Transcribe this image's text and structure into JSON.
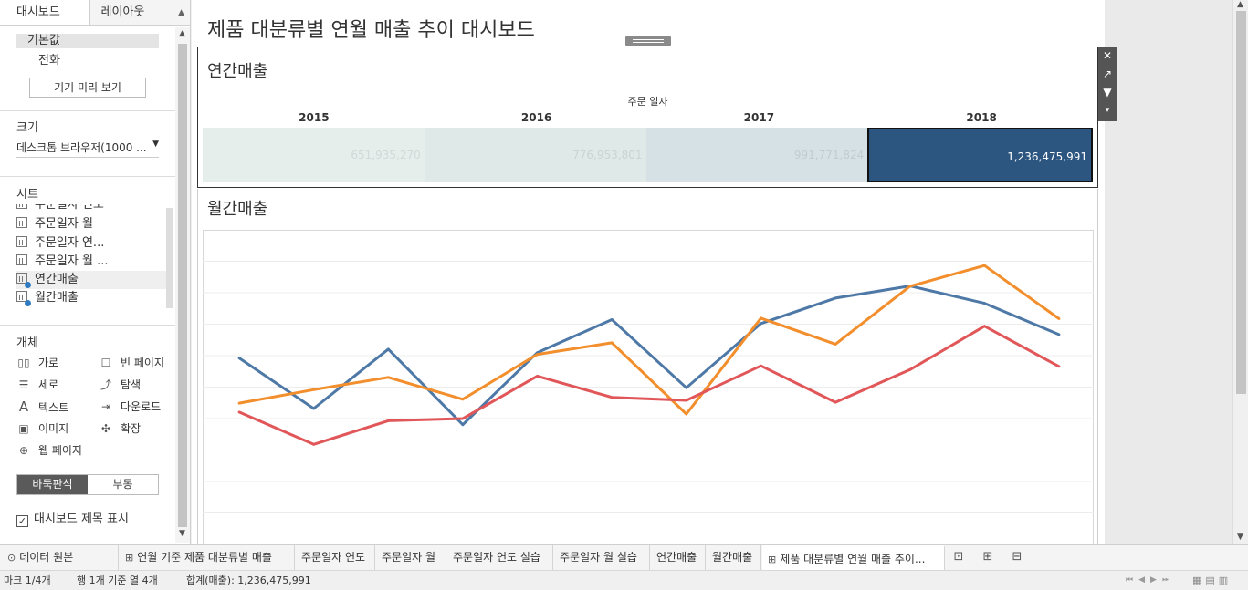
{
  "left_panel": {
    "tabs": [
      "대시보드",
      "레이아웃"
    ],
    "devices": [
      "기본값",
      "전화"
    ],
    "preview_button": "기기 미리 보기",
    "size_label": "크기",
    "size_value": "데스크톱 브라우저(1000 ...",
    "sheets_label": "시트",
    "sheets": [
      {
        "label": "주문일자 연도",
        "highlight": false,
        "used": false
      },
      {
        "label": "주문일자 월",
        "highlight": false,
        "used": false
      },
      {
        "label": "주문일자 연...",
        "highlight": false,
        "used": false
      },
      {
        "label": "주문일자 월 ...",
        "highlight": false,
        "used": false
      },
      {
        "label": "연간매출",
        "highlight": true,
        "used": true
      },
      {
        "label": "월간매출",
        "highlight": false,
        "used": true
      }
    ],
    "objects_label": "개체",
    "objects": [
      {
        "icon": "horizontal-container-icon",
        "glyph": "▯▯",
        "label": "가로"
      },
      {
        "icon": "blank-page-icon",
        "glyph": "☐",
        "label": "빈 페이지"
      },
      {
        "icon": "vertical-container-icon",
        "glyph": "☰",
        "label": "세로"
      },
      {
        "icon": "navigation-icon",
        "glyph": "⤴",
        "label": "탐색"
      },
      {
        "icon": "text-icon",
        "glyph": "A",
        "label": "텍스트"
      },
      {
        "icon": "download-icon",
        "glyph": "⇥",
        "label": "다운로드"
      },
      {
        "icon": "image-icon",
        "glyph": "▣",
        "label": "이미지"
      },
      {
        "icon": "extension-icon",
        "glyph": "✣",
        "label": "확장"
      },
      {
        "icon": "web-page-icon",
        "glyph": "⊕",
        "label": "웹 페이지"
      }
    ],
    "layout_modes": [
      "바둑판식",
      "부동"
    ],
    "show_title_label": "대시보드 제목 표시"
  },
  "dashboard": {
    "title": "제품 대분류별 연월 매출 추이 대시보드",
    "annual": {
      "title": "연간매출",
      "header": "주문 일자",
      "years": [
        "2015",
        "2016",
        "2017",
        "2018"
      ],
      "values": [
        "651,935,270",
        "776,953,801",
        "991,771,824",
        "1,236,475,991"
      ],
      "colors": [
        "#e6eeec",
        "#dfe9e8",
        "#d5e1e5",
        "#2c5580"
      ],
      "text_colors": [
        "#cfd9d7",
        "#c9d4d3",
        "#bfcdd2",
        "#ffffff"
      ]
    },
    "monthly": {
      "title": "월간매출"
    }
  },
  "chart_data": {
    "type": "line",
    "x": [
      1,
      2,
      3,
      4,
      5,
      6,
      7,
      8,
      9,
      10,
      11,
      12
    ],
    "series": [
      {
        "color": "#4e79a7",
        "values": [
          78.5,
          46.4,
          84.1,
          36.1,
          81.9,
          102.9,
          59.6,
          100.4,
          116.6,
          124.3,
          113.3,
          93.4
        ]
      },
      {
        "color": "#f28e2b",
        "values": [
          49.8,
          58.4,
          66.2,
          52.3,
          80.8,
          88.2,
          42.9,
          103.8,
          87.3,
          124.1,
          137.3,
          103.5
        ]
      },
      {
        "color": "#e15759",
        "values": [
          44.1,
          23.6,
          38.6,
          40.0,
          67.0,
          53.5,
          51.6,
          73.5,
          50.4,
          71.1,
          98.7,
          73.1
        ]
      }
    ],
    "ylim": [
      -40,
      160
    ],
    "grid": true
  },
  "tabs": {
    "datasource": "데이터 원본",
    "items": [
      {
        "label": "연월 기준 제품 대분류별 매출",
        "icon": "dashboard-tab-icon",
        "active": false
      },
      {
        "label": "주문일자 연도",
        "icon": "",
        "active": false
      },
      {
        "label": "주문일자 월",
        "icon": "",
        "active": false
      },
      {
        "label": "주문일자 연도 실습",
        "icon": "",
        "active": false
      },
      {
        "label": "주문일자 월 실습",
        "icon": "",
        "active": false
      },
      {
        "label": "연간매출",
        "icon": "",
        "active": false
      },
      {
        "label": "월간매출",
        "icon": "",
        "active": false
      },
      {
        "label": "제품 대분류별 연월 매출 추이...",
        "icon": "dashboard-tab-icon",
        "active": true
      }
    ]
  },
  "status": {
    "marks": "마크 1/4개",
    "rows_cols": "행 1개 기준 열 4개",
    "sum": "합계(매출): 1,236,475,991"
  }
}
